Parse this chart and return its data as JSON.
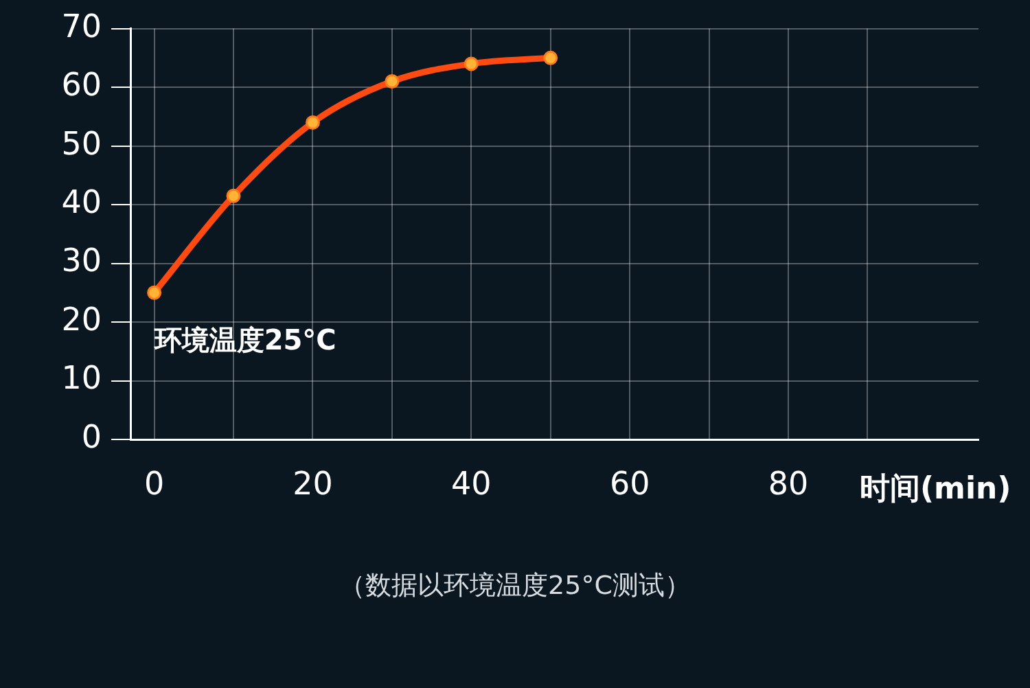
{
  "chart_data": {
    "type": "line",
    "xlabel": "时间(min)",
    "x": [
      0,
      10,
      20,
      30,
      40,
      50
    ],
    "series": [
      {
        "color": "#ff4a12",
        "values": [
          25,
          41.5,
          54,
          61,
          64,
          65
        ]
      }
    ],
    "xlim": [
      -3,
      104
    ],
    "xticks": [
      0,
      {
        "value": 10,
        "label": null
      },
      20,
      {
        "value": 30,
        "label": null
      },
      40,
      {
        "value": 50,
        "label": null
      },
      60,
      {
        "value": 70,
        "label": null
      },
      80,
      {
        "value": 90,
        "label": null
      }
    ],
    "ylim": [
      0,
      70
    ],
    "yticks": [
      0,
      10,
      20,
      30,
      40,
      50,
      60,
      70
    ],
    "grid": true,
    "legend": false,
    "marker": "circle",
    "line_style": "solid",
    "annotations": [
      {
        "text": "环境温度25°C",
        "x": 0,
        "y": 25
      },
      "（数据以环境温度25°C测试）"
    ]
  }
}
